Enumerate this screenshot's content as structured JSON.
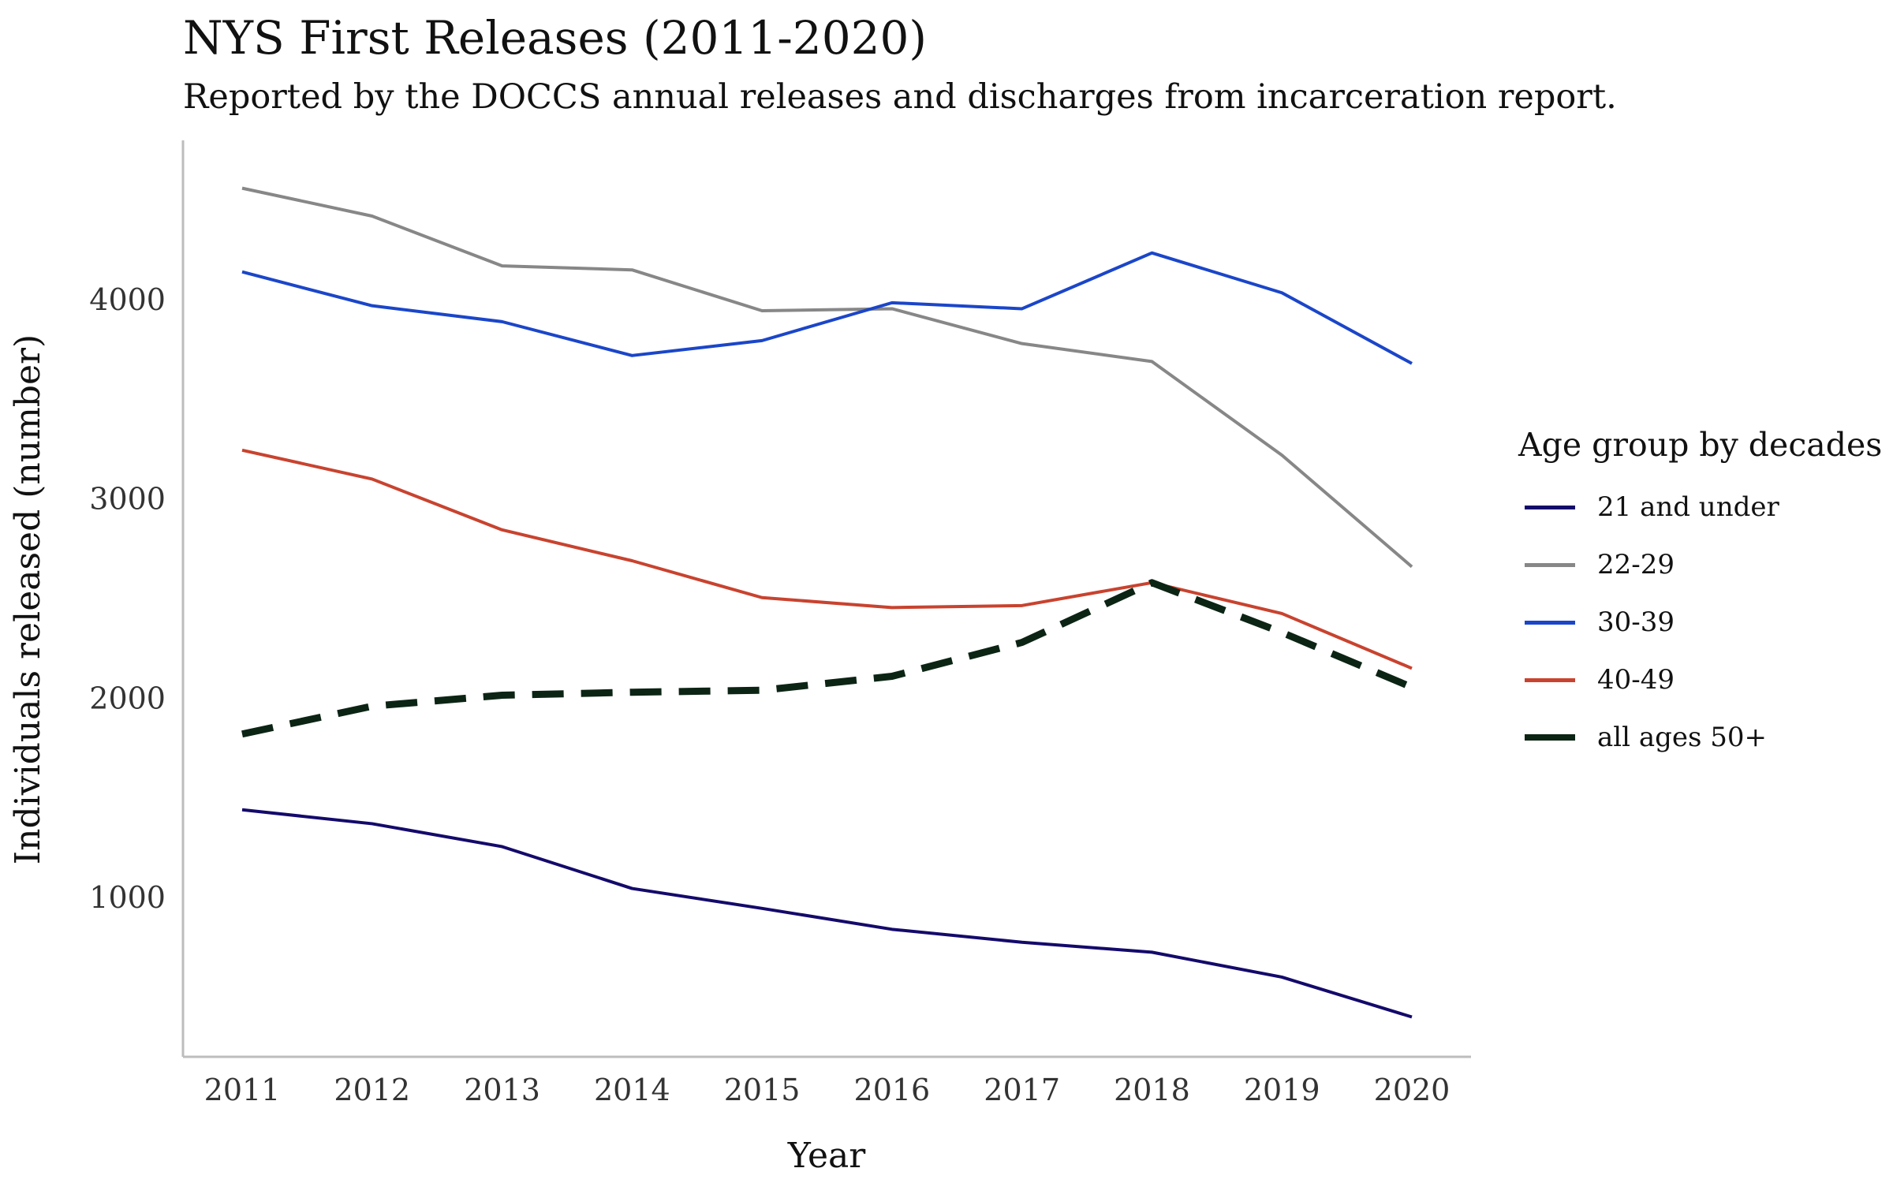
{
  "title": "NYS First Releases (2011-2020)",
  "subtitle": "Reported by the DOCCS annual releases and discharges from incarceration report.",
  "chart_data": {
    "type": "line",
    "xlabel": "Year",
    "ylabel": "Individuals released (number)",
    "x": [
      2011,
      2012,
      2013,
      2014,
      2015,
      2016,
      2017,
      2018,
      2019,
      2020
    ],
    "ylim": [
      200,
      4800
    ],
    "yticks": [
      1000,
      2000,
      3000,
      4000
    ],
    "grid": false,
    "legend_title": "Age group by decades",
    "legend_position": "right",
    "series": [
      {
        "name": "21 and under",
        "color": "#140a6b",
        "dashed": false,
        "values": [
          1440,
          1370,
          1255,
          1045,
          945,
          840,
          775,
          725,
          600,
          400
        ]
      },
      {
        "name": "22-29",
        "color": "#878787",
        "dashed": false,
        "values": [
          4560,
          4420,
          4170,
          4150,
          3945,
          3955,
          3780,
          3690,
          3220,
          2660
        ]
      },
      {
        "name": "30-39",
        "color": "#1b46c9",
        "dashed": false,
        "values": [
          4140,
          3970,
          3890,
          3720,
          3795,
          3985,
          3955,
          4235,
          4035,
          3680
        ]
      },
      {
        "name": "40-49",
        "color": "#c8432f",
        "dashed": false,
        "values": [
          3245,
          3100,
          2845,
          2690,
          2505,
          2455,
          2465,
          2580,
          2425,
          2150
        ]
      },
      {
        "name": "all ages 50+",
        "color": "#0c2414",
        "dashed": true,
        "values": [
          1820,
          1960,
          2015,
          2030,
          2040,
          2110,
          2280,
          2580,
          2330,
          2055
        ]
      }
    ]
  }
}
